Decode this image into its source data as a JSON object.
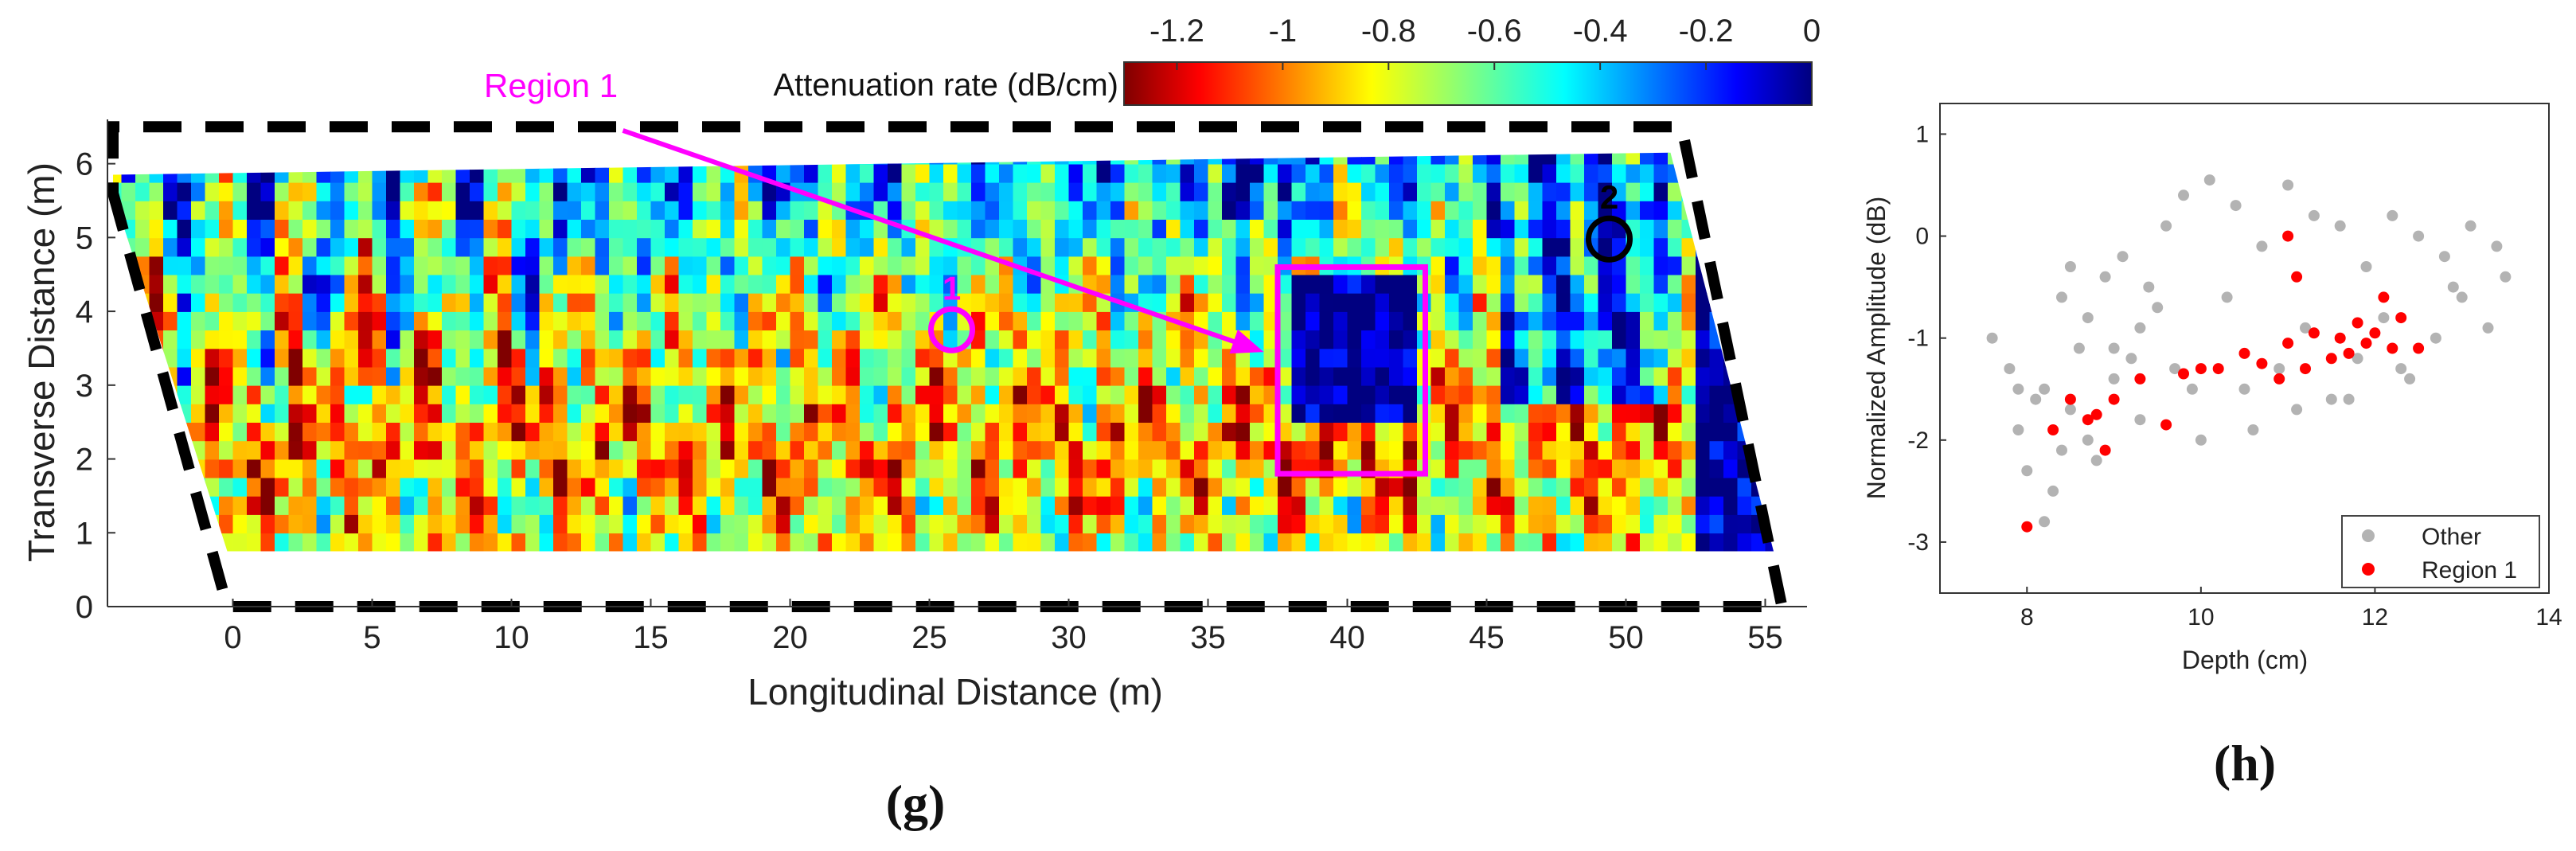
{
  "chart_data": [
    {
      "panel": "(g)",
      "type": "heatmap",
      "xlabel": "Longitudinal Distance (m)",
      "ylabel": "Transverse Distance (m)",
      "xticks": [
        0,
        5,
        10,
        15,
        20,
        25,
        30,
        35,
        40,
        45,
        50,
        55
      ],
      "yticks": [
        0,
        1,
        2,
        3,
        4,
        5,
        6
      ],
      "xlim": [
        -4.5,
        56.5
      ],
      "ylim": [
        0,
        6.6
      ],
      "colorbar": {
        "title": "Attenuation rate (dB/cm)",
        "ticks": [
          "-1.2",
          "-1",
          "-0.8",
          "-0.6",
          "-0.4",
          "-0.2",
          "0"
        ],
        "range": [
          -1.3,
          0
        ],
        "colormap": "jet"
      },
      "annotations": {
        "region_label": "Region 1",
        "marker1": "1",
        "marker2": "2",
        "region_box": {
          "x0": 37.5,
          "x1": 42.8,
          "y0": 1.8,
          "y1": 4.6
        },
        "marker1_pos": [
          25.8,
          3.75
        ],
        "marker2_pos": [
          49.4,
          4.98
        ],
        "arrow_start": [
          14.0,
          6.45
        ],
        "arrow_end": [
          37.0,
          3.45
        ]
      },
      "boundary_polygon": [
        [
          -4.3,
          5.6
        ],
        [
          -0.2,
          0.0
        ],
        [
          55.6,
          0.0
        ],
        [
          52.0,
          6.5
        ],
        [
          -4.3,
          6.5
        ]
      ]
    },
    {
      "panel": "(h)",
      "type": "scatter",
      "xlabel": "Depth (cm)",
      "ylabel": "Normalized Amplitude (dB)",
      "xlim": [
        7,
        14
      ],
      "ylim": [
        -3.5,
        1.3
      ],
      "xticks": [
        8,
        10,
        12,
        14
      ],
      "yticks": [
        1,
        0,
        -1,
        -2,
        -3
      ],
      "legend_position": "bottom-right",
      "series": [
        {
          "name": "Other",
          "color": "#b3b3b3",
          "x": [
            7.6,
            7.9,
            8.2,
            8.0,
            7.8,
            8.4,
            8.6,
            8.3,
            8.7,
            8.9,
            9.1,
            8.5,
            9.3,
            9.6,
            9.0,
            8.8,
            9.4,
            9.8,
            10.1,
            10.4,
            10.7,
            11.0,
            11.3,
            11.6,
            11.9,
            12.2,
            12.5,
            12.8,
            13.1,
            13.4,
            9.2,
            9.5,
            9.9,
            10.3,
            10.6,
            10.9,
            11.2,
            11.5,
            11.8,
            12.1,
            12.4,
            12.7,
            13.0,
            13.3,
            8.1,
            8.4,
            8.7,
            9.0,
            9.3,
            9.7,
            10.0,
            10.5,
            11.1,
            11.7,
            12.3,
            12.9,
            13.5,
            7.9,
            8.2,
            8.5
          ],
          "y": [
            -1.0,
            -1.9,
            -1.5,
            -2.3,
            -1.3,
            -0.6,
            -1.1,
            -2.5,
            -2.0,
            -0.4,
            -0.2,
            -1.7,
            -0.9,
            0.1,
            -1.4,
            -2.2,
            -0.5,
            0.4,
            0.55,
            0.3,
            -0.1,
            0.5,
            0.2,
            0.1,
            -0.3,
            0.2,
            0.0,
            -0.2,
            0.1,
            -0.1,
            -1.2,
            -0.7,
            -1.5,
            -0.6,
            -1.9,
            -1.3,
            -0.9,
            -1.6,
            -1.2,
            -0.8,
            -1.4,
            -1.0,
            -0.6,
            -0.9,
            -1.6,
            -2.1,
            -0.8,
            -1.1,
            -1.8,
            -1.3,
            -2.0,
            -1.5,
            -1.7,
            -1.6,
            -1.3,
            -0.5,
            -0.4,
            -1.5,
            -2.8,
            -0.3
          ]
        },
        {
          "name": "Region 1",
          "color": "#ff0000",
          "x": [
            8.0,
            8.3,
            8.5,
            8.7,
            8.9,
            9.0,
            8.8,
            9.3,
            9.6,
            9.8,
            10.0,
            10.2,
            10.5,
            10.7,
            10.9,
            11.0,
            11.2,
            11.3,
            11.5,
            11.6,
            11.7,
            11.8,
            11.9,
            12.0,
            12.1,
            12.2,
            12.3,
            12.5,
            11.1,
            11.0
          ],
          "y": [
            -2.85,
            -1.9,
            -1.6,
            -1.8,
            -2.1,
            -1.6,
            -1.75,
            -1.4,
            -1.85,
            -1.35,
            -1.3,
            -1.3,
            -1.15,
            -1.25,
            -1.4,
            -1.05,
            -1.3,
            -0.95,
            -1.2,
            -1.0,
            -1.15,
            -0.85,
            -1.05,
            -0.95,
            -0.6,
            -1.1,
            -0.8,
            -1.1,
            -0.4,
            0.0
          ]
        }
      ]
    }
  ],
  "labels": {
    "panel_g": "(g)",
    "panel_h": "(h)"
  }
}
